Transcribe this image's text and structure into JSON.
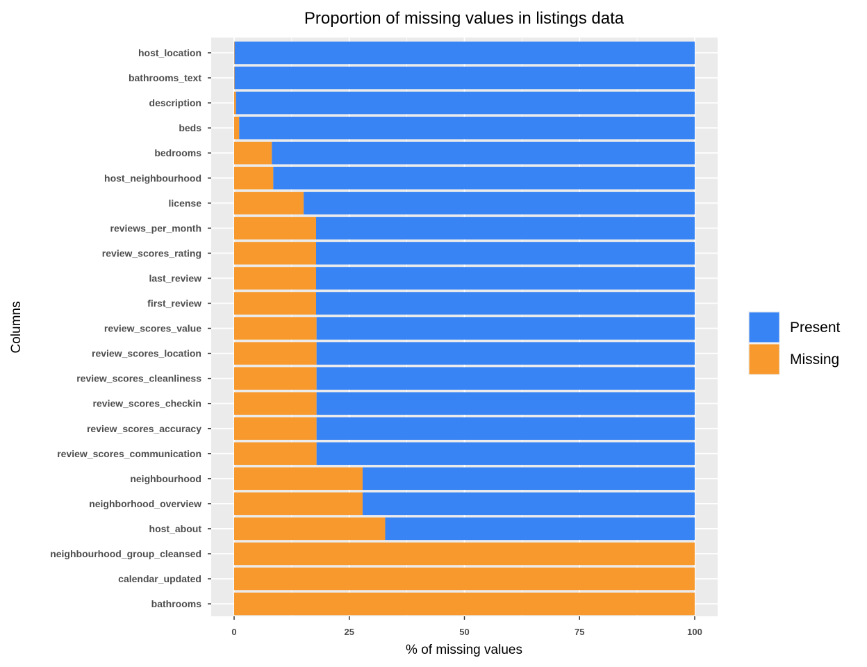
{
  "chart_data": {
    "type": "bar",
    "stacked": true,
    "orientation": "horizontal",
    "title": "Proportion of missing values in listings data",
    "xlabel": "% of missing values",
    "ylabel": "Columns",
    "xlim": [
      0,
      100
    ],
    "xticks": [
      "0",
      "25",
      "50",
      "75",
      "100"
    ],
    "grid": true,
    "legend_position": "right",
    "categories": [
      "host_location",
      "bathrooms_text",
      "description",
      "beds",
      "bedrooms",
      "host_neighbourhood",
      "license",
      "reviews_per_month",
      "review_scores_rating",
      "last_review",
      "first_review",
      "review_scores_value",
      "review_scores_location",
      "review_scores_cleanliness",
      "review_scores_checkin",
      "review_scores_accuracy",
      "review_scores_communication",
      "neighbourhood",
      "neighborhood_overview",
      "host_about",
      "neighbourhood_group_cleansed",
      "calendar_updated",
      "bathrooms"
    ],
    "series": [
      {
        "name": "Missing",
        "color": "#F8992E",
        "values": [
          0.1,
          0.1,
          0.4,
          1.1,
          8.2,
          8.5,
          15.1,
          17.8,
          17.8,
          17.8,
          17.8,
          17.9,
          17.9,
          17.9,
          17.9,
          17.9,
          17.9,
          27.9,
          27.9,
          32.8,
          100,
          100,
          100
        ]
      },
      {
        "name": "Present",
        "color": "#3884F5",
        "values": [
          99.9,
          99.9,
          99.6,
          98.9,
          91.8,
          91.5,
          84.9,
          82.2,
          82.2,
          82.2,
          82.2,
          82.1,
          82.1,
          82.1,
          82.1,
          82.1,
          82.1,
          72.1,
          72.1,
          67.2,
          0,
          0,
          0
        ]
      }
    ],
    "legend": [
      "Present",
      "Missing"
    ]
  }
}
